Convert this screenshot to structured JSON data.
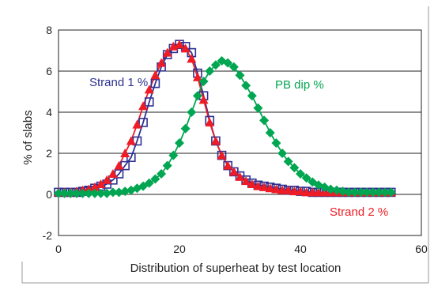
{
  "chart_data": {
    "type": "scatter",
    "title": "",
    "xlabel": "Distribution of superheat by test location",
    "ylabel": "% of slabs",
    "xlim": [
      0,
      60
    ],
    "ylim": [
      -2,
      8
    ],
    "xticks": [
      "0",
      "20",
      "40",
      "60"
    ],
    "yticks": [
      "-2",
      "0",
      "2",
      "4",
      "6",
      "8"
    ],
    "grid": "horizontal",
    "legend": "inline labels",
    "series": [
      {
        "name": "Strand 1 %",
        "color": "#2e3192",
        "marker": "open-square",
        "x": [
          0,
          1,
          2,
          3,
          4,
          5,
          6,
          7,
          8,
          9,
          10,
          11,
          12,
          13,
          14,
          15,
          16,
          17,
          18,
          19,
          20,
          21,
          22,
          23,
          24,
          25,
          26,
          27,
          28,
          29,
          30,
          31,
          32,
          33,
          34,
          35,
          36,
          37,
          38,
          39,
          40,
          41,
          42,
          43,
          44,
          45,
          46,
          47,
          48,
          49,
          50,
          51,
          52,
          53,
          54,
          55
        ],
        "y": [
          0.1,
          0.1,
          0.1,
          0.1,
          0.15,
          0.2,
          0.3,
          0.4,
          0.5,
          0.7,
          1.0,
          1.4,
          1.8,
          2.6,
          3.5,
          4.5,
          5.4,
          6.2,
          6.8,
          7.1,
          7.3,
          7.2,
          6.9,
          5.9,
          4.8,
          3.6,
          2.6,
          1.9,
          1.4,
          1.1,
          0.9,
          0.7,
          0.55,
          0.45,
          0.4,
          0.35,
          0.3,
          0.25,
          0.2,
          0.2,
          0.15,
          0.15,
          0.1,
          0.1,
          0.1,
          0.1,
          0.1,
          0.1,
          0.1,
          0.1,
          0.1,
          0.1,
          0.1,
          0.1,
          0.1,
          0.1
        ]
      },
      {
        "name": "Strand 2 %",
        "color": "#ee1c25",
        "marker": "filled-triangle",
        "x": [
          0,
          1,
          2,
          3,
          4,
          5,
          6,
          7,
          8,
          9,
          10,
          11,
          12,
          13,
          14,
          15,
          16,
          17,
          18,
          19,
          20,
          21,
          22,
          23,
          24,
          25,
          26,
          27,
          28,
          29,
          30,
          31,
          32,
          33,
          34,
          35,
          36,
          37,
          38,
          39,
          40,
          41,
          42,
          43,
          44,
          45,
          46,
          47,
          48,
          49,
          50,
          51,
          52,
          53,
          54,
          55
        ],
        "y": [
          0.1,
          0.1,
          0.1,
          0.15,
          0.2,
          0.25,
          0.35,
          0.5,
          0.7,
          1.0,
          1.4,
          2.0,
          2.6,
          3.4,
          4.3,
          5.1,
          5.8,
          6.4,
          6.9,
          7.2,
          7.3,
          7.1,
          6.6,
          5.7,
          4.6,
          3.5,
          2.6,
          1.9,
          1.4,
          1.1,
          0.85,
          0.65,
          0.5,
          0.4,
          0.35,
          0.3,
          0.25,
          0.2,
          0.2,
          0.15,
          0.15,
          0.1,
          0.1,
          0.1,
          0.1,
          0.1,
          0.1,
          0.1,
          0.1,
          0.1,
          0.1,
          0.1,
          0.1,
          0.1,
          0.1,
          0.1
        ]
      },
      {
        "name": "PB dip %",
        "color": "#00a651",
        "marker": "filled-diamond",
        "x": [
          0,
          1,
          2,
          3,
          4,
          5,
          6,
          7,
          8,
          9,
          10,
          11,
          12,
          13,
          14,
          15,
          16,
          17,
          18,
          19,
          20,
          21,
          22,
          23,
          24,
          25,
          26,
          27,
          28,
          29,
          30,
          31,
          32,
          33,
          34,
          35,
          36,
          37,
          38,
          39,
          40,
          41,
          42,
          43,
          44,
          45,
          46,
          47,
          48,
          49,
          50,
          51,
          52,
          53,
          54,
          55
        ],
        "y": [
          0.05,
          0.05,
          0.05,
          0.05,
          0.05,
          0.05,
          0.05,
          0.05,
          0.05,
          0.1,
          0.1,
          0.15,
          0.2,
          0.3,
          0.4,
          0.55,
          0.75,
          1.0,
          1.4,
          1.9,
          2.5,
          3.2,
          4.0,
          4.8,
          5.5,
          6.0,
          6.3,
          6.5,
          6.4,
          6.2,
          5.8,
          5.3,
          4.8,
          4.2,
          3.6,
          3.0,
          2.5,
          2.0,
          1.6,
          1.3,
          1.0,
          0.8,
          0.6,
          0.45,
          0.35,
          0.25,
          0.2,
          0.15,
          0.1,
          0.1,
          0.1,
          0.1,
          0.1,
          0.1,
          0.1,
          0.1
        ]
      }
    ]
  }
}
